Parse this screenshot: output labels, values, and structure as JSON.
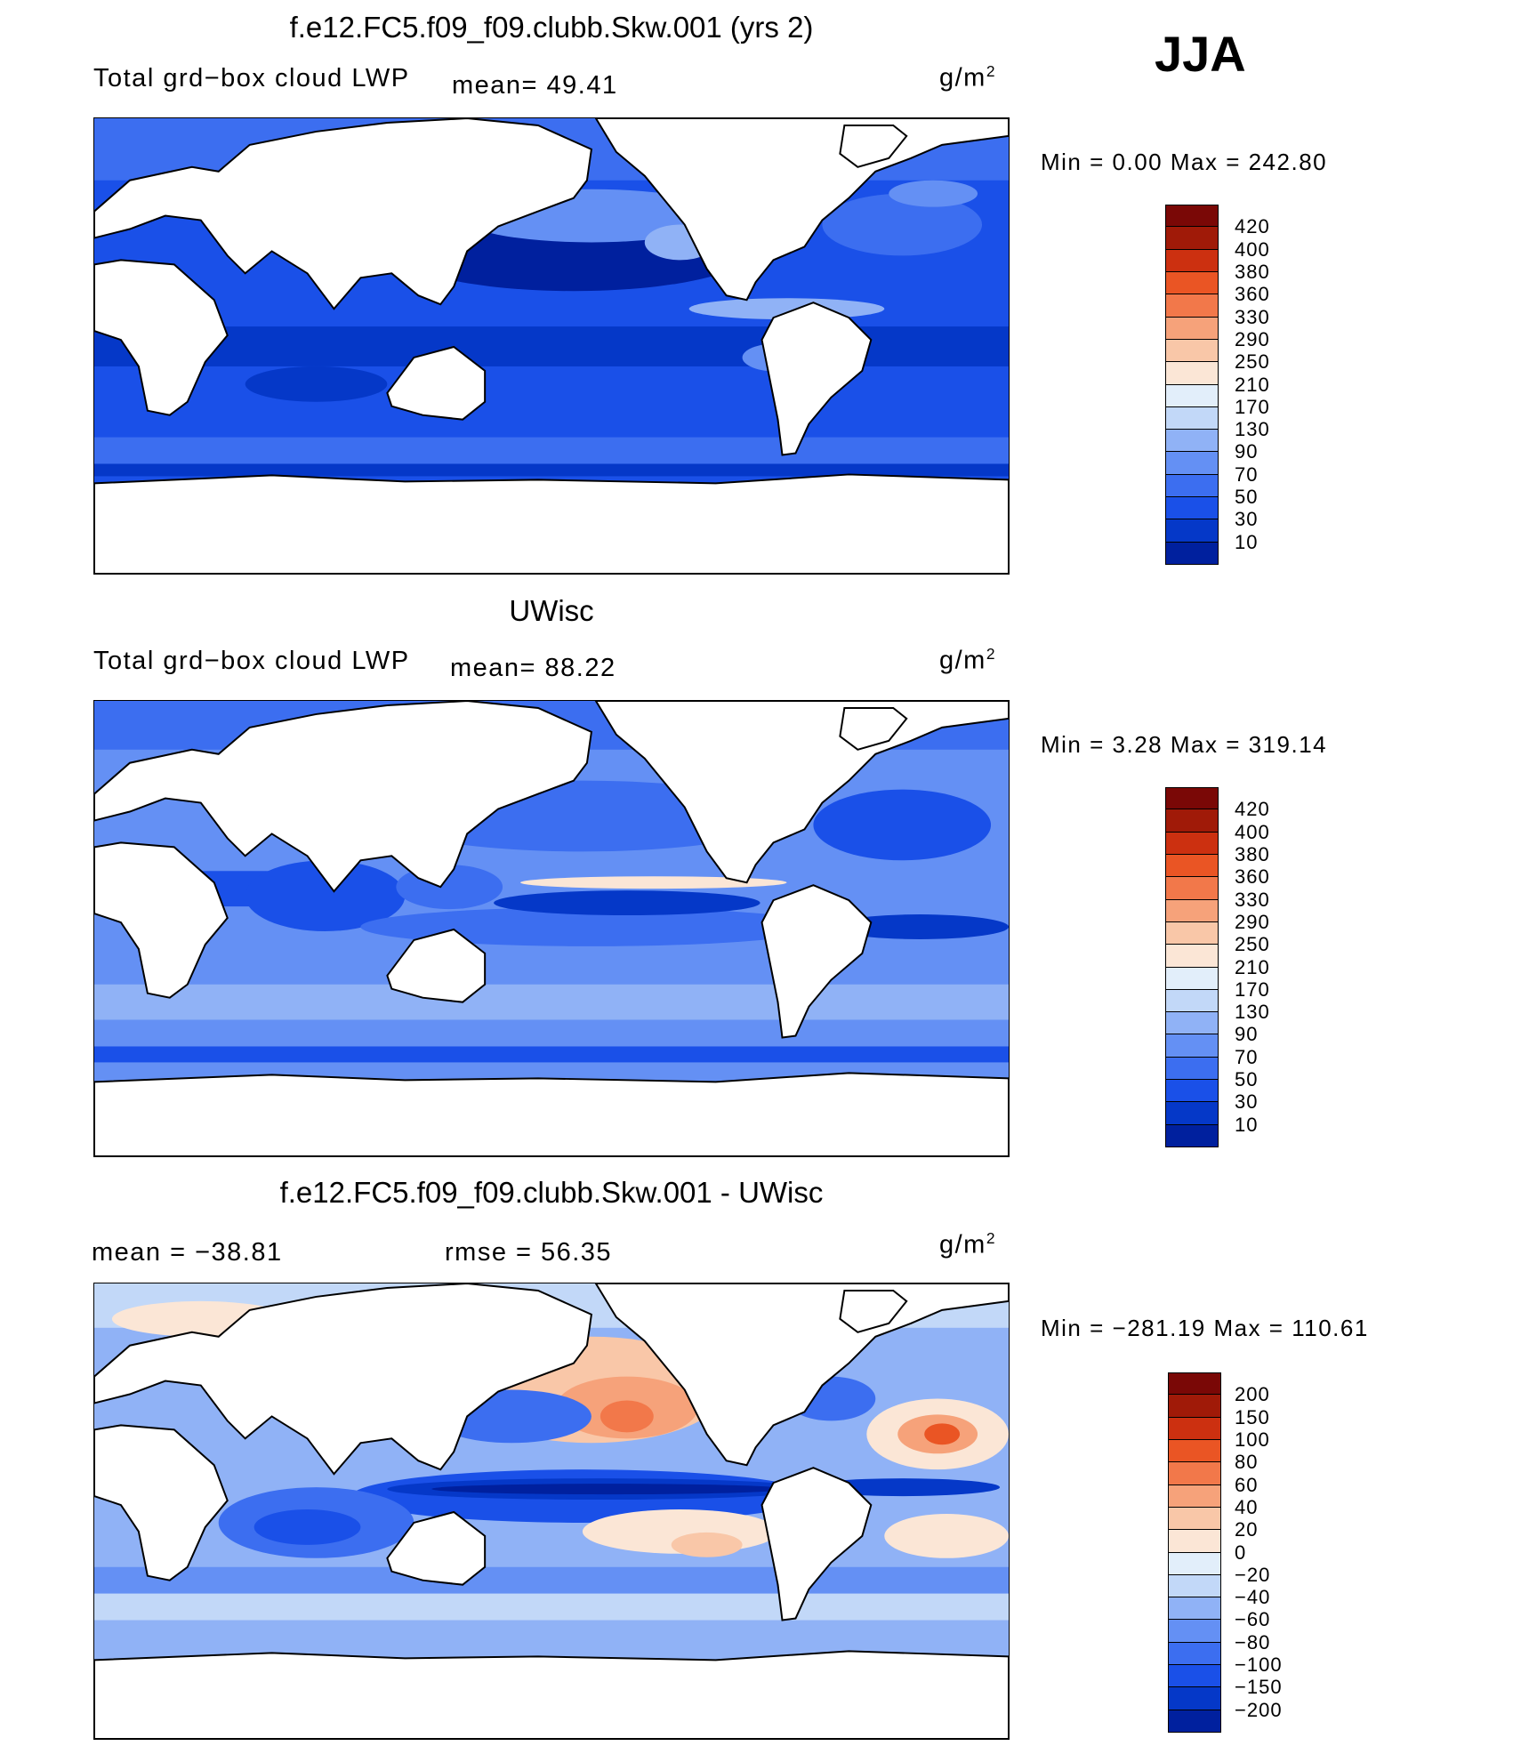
{
  "season": "JJA",
  "legend_labels": {
    "lwp": [
      "10",
      "30",
      "50",
      "70",
      "90",
      "130",
      "170",
      "210",
      "250",
      "290",
      "330",
      "360",
      "380",
      "400",
      "420"
    ],
    "diff": [
      "-200",
      "-150",
      "-100",
      "-80",
      "-60",
      "-40",
      "-20",
      "0",
      "20",
      "40",
      "60",
      "80",
      "100",
      "150",
      "200"
    ]
  },
  "colors": {
    "lwp": [
      "#000e7a",
      "#00209e",
      "#0538c8",
      "#1a50e8",
      "#3c6ef0",
      "#6490f4",
      "#90b2f6",
      "#c2d8f8",
      "#e2eefa",
      "#fbe6d6",
      "#f9c7a8",
      "#f6a27a",
      "#f2784a",
      "#ea5524",
      "#cc3010",
      "#a01a08",
      "#7a0806"
    ],
    "diff": [
      "#000e7a",
      "#00209e",
      "#0538c8",
      "#1a50e8",
      "#3c6ef0",
      "#6490f4",
      "#90b2f6",
      "#c2d8f8",
      "#e2eefa",
      "#fbe6d6",
      "#f9c7a8",
      "#f6a27a",
      "#f2784a",
      "#ea5524",
      "#cc3010",
      "#a01a08",
      "#7a0806"
    ]
  },
  "panels": [
    {
      "title": "f.e12.FC5.f09_f09.clubb.Skw.001 (yrs 2)",
      "left_label": "Total grd−box cloud LWP",
      "stat1": "mean=   49.41",
      "units": "g/m",
      "units_exp": "2",
      "minmax": "Min =    0.00 Max = 242.80"
    },
    {
      "title": "UWisc",
      "left_label": "Total grd−box cloud LWP",
      "stat1": "mean=   88.22",
      "units": "g/m",
      "units_exp": "2",
      "minmax": "Min =    3.28 Max = 319.14"
    },
    {
      "title": "f.e12.FC5.f09_f09.clubb.Skw.001 - UWisc",
      "left_label": "mean = −38.81",
      "stat1": "rmse =   56.35",
      "units": "g/m",
      "units_exp": "2",
      "minmax": "Min = −281.19 Max = 110.61"
    }
  ]
}
